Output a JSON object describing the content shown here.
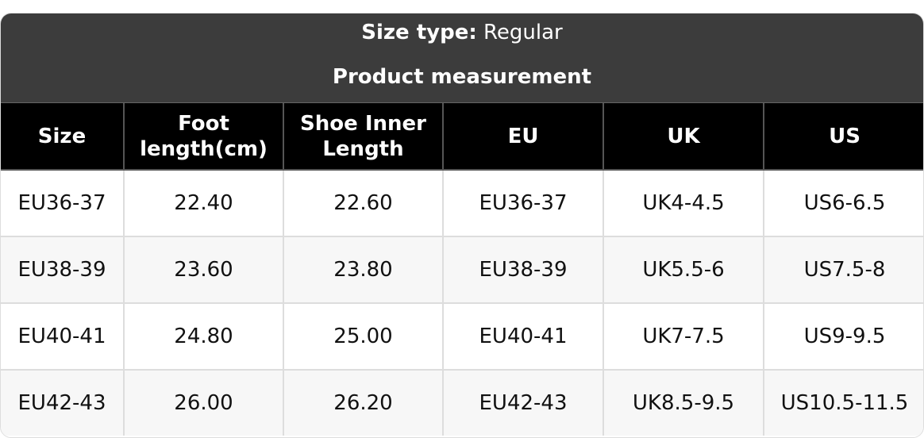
{
  "title": {
    "label": "Size type:",
    "value": "Regular",
    "subtitle": "Product measurement"
  },
  "table": {
    "headers": [
      "Size",
      "Foot length(cm)",
      "Shoe Inner Length",
      "EU",
      "UK",
      "US"
    ],
    "rows": [
      [
        "EU36-37",
        "22.40",
        "22.60",
        "EU36-37",
        "UK4-4.5",
        "US6-6.5"
      ],
      [
        "EU38-39",
        "23.60",
        "23.80",
        "EU38-39",
        "UK5.5-6",
        "US7.5-8"
      ],
      [
        "EU40-41",
        "24.80",
        "25.00",
        "EU40-41",
        "UK7-7.5",
        "US9-9.5"
      ],
      [
        "EU42-43",
        "26.00",
        "26.20",
        "EU42-43",
        "UK8.5-9.5",
        "US10.5-11.5"
      ]
    ]
  }
}
